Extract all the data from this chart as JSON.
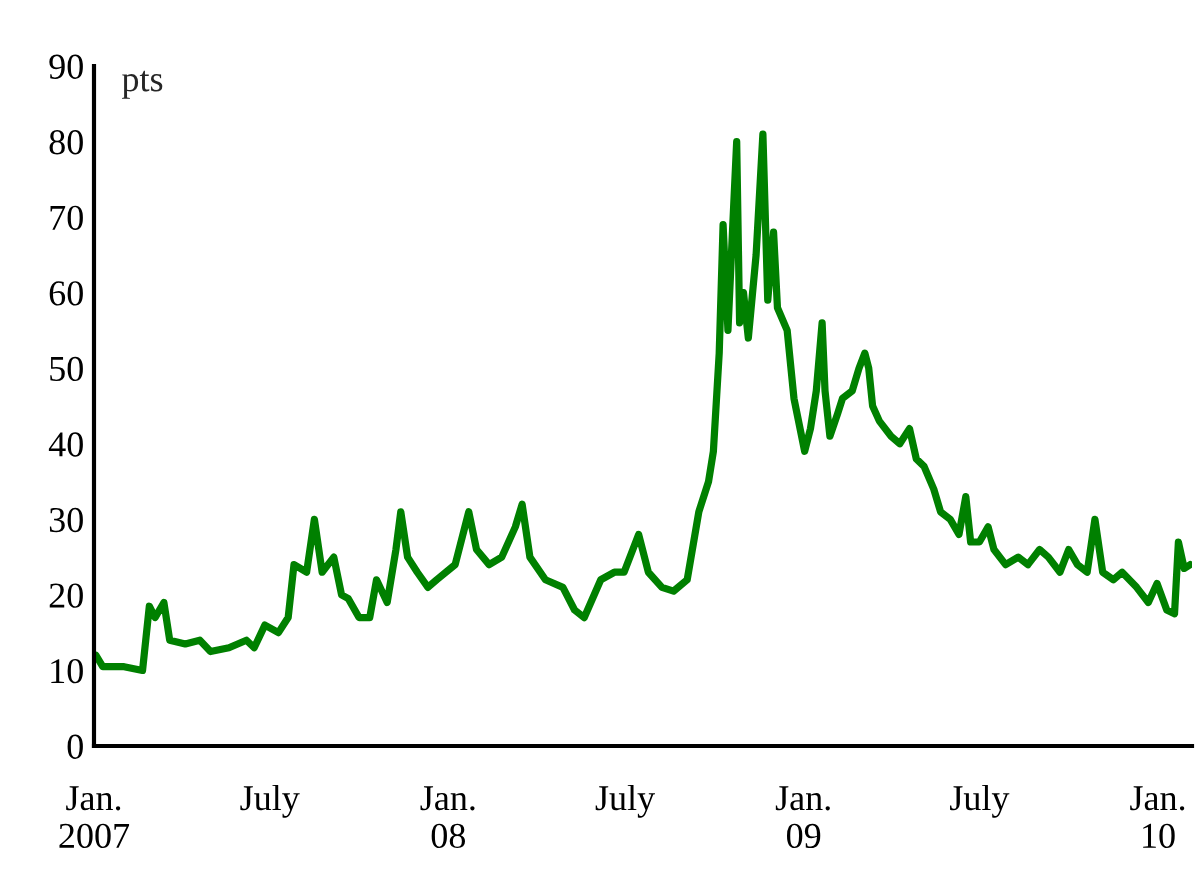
{
  "chart_data": {
    "type": "line",
    "ylabel": "pts",
    "x": [
      "2007-01-03",
      "2007-01-10",
      "2007-02-01",
      "2007-02-20",
      "2007-02-27",
      "2007-03-05",
      "2007-03-14",
      "2007-03-20",
      "2007-04-05",
      "2007-04-20",
      "2007-05-01",
      "2007-05-20",
      "2007-06-07",
      "2007-06-15",
      "2007-06-26",
      "2007-07-10",
      "2007-07-20",
      "2007-07-26",
      "2007-08-08",
      "2007-08-16",
      "2007-08-24",
      "2007-09-05",
      "2007-09-13",
      "2007-09-20",
      "2007-10-01",
      "2007-10-12",
      "2007-10-19",
      "2007-10-30",
      "2007-11-08",
      "2007-11-13",
      "2007-11-20",
      "2007-11-30",
      "2007-12-11",
      "2007-12-20",
      "2008-01-08",
      "2008-01-22",
      "2008-01-30",
      "2008-02-12",
      "2008-02-25",
      "2008-03-10",
      "2008-03-17",
      "2008-03-25",
      "2008-04-10",
      "2008-04-28",
      "2008-05-10",
      "2008-05-20",
      "2008-06-06",
      "2008-06-20",
      "2008-06-30",
      "2008-07-15",
      "2008-07-25",
      "2008-08-08",
      "2008-08-20",
      "2008-09-03",
      "2008-09-15",
      "2008-09-25",
      "2008-09-30",
      "2008-10-06",
      "2008-10-10",
      "2008-10-15",
      "2008-10-20",
      "2008-10-24",
      "2008-10-27",
      "2008-10-31",
      "2008-11-05",
      "2008-11-13",
      "2008-11-20",
      "2008-11-25",
      "2008-12-01",
      "2008-12-05",
      "2008-12-15",
      "2008-12-22",
      "2009-01-02",
      "2009-01-08",
      "2009-01-14",
      "2009-01-20",
      "2009-01-23",
      "2009-01-28",
      "2009-02-05",
      "2009-02-10",
      "2009-02-20",
      "2009-02-27",
      "2009-03-05",
      "2009-03-09",
      "2009-03-13",
      "2009-03-20",
      "2009-04-01",
      "2009-04-10",
      "2009-04-20",
      "2009-04-27",
      "2009-05-05",
      "2009-05-15",
      "2009-05-22",
      "2009-06-01",
      "2009-06-10",
      "2009-06-17",
      "2009-06-22",
      "2009-07-01",
      "2009-07-10",
      "2009-07-16",
      "2009-07-28",
      "2009-08-10",
      "2009-08-20",
      "2009-09-01",
      "2009-09-10",
      "2009-09-22",
      "2009-10-01",
      "2009-10-10",
      "2009-10-20",
      "2009-10-28",
      "2009-11-05",
      "2009-11-16",
      "2009-11-25",
      "2009-12-10",
      "2009-12-22",
      "2009-12-31",
      "2010-01-10",
      "2010-01-18",
      "2010-01-22",
      "2010-01-28",
      "2010-02-03"
    ],
    "series": [
      {
        "color": "#008000",
        "values": [
          12,
          10.5,
          10.5,
          10,
          18.5,
          17,
          19,
          14,
          13.5,
          14,
          12.5,
          13,
          14,
          13,
          16,
          15,
          17,
          24,
          23,
          30,
          23,
          25,
          20,
          19.5,
          17,
          17,
          22,
          19,
          26,
          31,
          25,
          23,
          21,
          22,
          24,
          31,
          26,
          24,
          25,
          29,
          32,
          25,
          22,
          21,
          18,
          17,
          22,
          23,
          23,
          28,
          23,
          21,
          20.5,
          22,
          31,
          35,
          39,
          52,
          69,
          55,
          69,
          80,
          56,
          60,
          54,
          65,
          81,
          59,
          68,
          58,
          55,
          46,
          39,
          42,
          47,
          56,
          47,
          41,
          44,
          46,
          47,
          50,
          52,
          50,
          45,
          43,
          41,
          40,
          42,
          38,
          37,
          34,
          31,
          30,
          28,
          33,
          27,
          27,
          29,
          26,
          24,
          25,
          24,
          26,
          25,
          23,
          26,
          24,
          23,
          30,
          23,
          22,
          23,
          21,
          19,
          21.5,
          18,
          17.5,
          27,
          23.5,
          24
        ]
      }
    ],
    "xlim": [
      "2007-01-01",
      "2010-02-05"
    ],
    "xticks": [
      {
        "value": "2007-01-01",
        "label": "Jan.\n2007"
      },
      {
        "value": "2007-07-01",
        "label": "July"
      },
      {
        "value": "2008-01-01",
        "label": "Jan.\n08"
      },
      {
        "value": "2008-07-01",
        "label": "July"
      },
      {
        "value": "2009-01-01",
        "label": "Jan.\n09"
      },
      {
        "value": "2009-07-01",
        "label": "July"
      },
      {
        "value": "2010-01-01",
        "label": "Jan.\n10"
      }
    ],
    "ylim": [
      0,
      90
    ],
    "yticks": [
      0,
      10,
      20,
      30,
      40,
      50,
      60,
      70,
      80,
      90
    ],
    "grid": false,
    "legend": false,
    "line_style": "solid",
    "marker": "none"
  }
}
